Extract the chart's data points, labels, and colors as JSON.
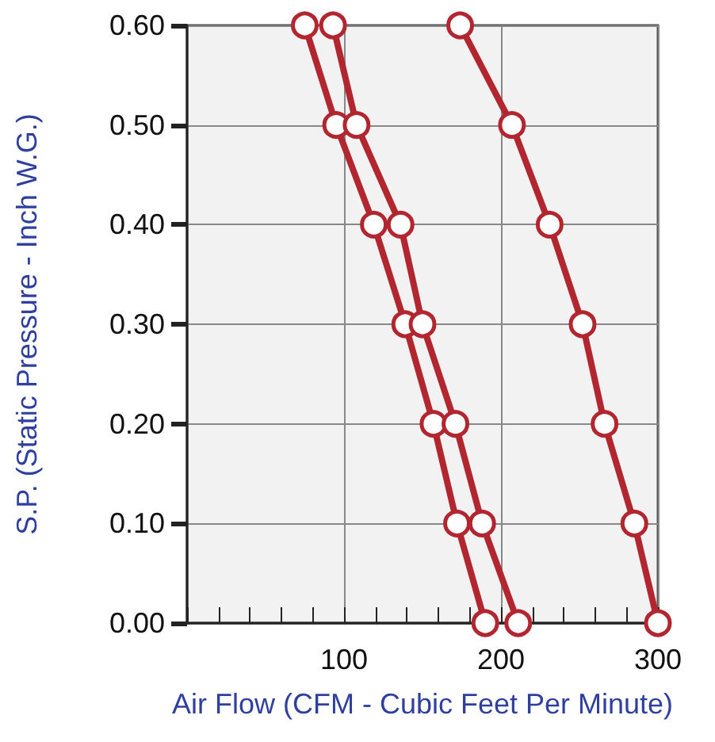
{
  "chart_data": {
    "type": "line",
    "xlabel": "Air Flow (CFM - Cubic Feet Per Minute)",
    "ylabel": "S.P. (Static Pressure - Inch W.G.)",
    "series": [
      {
        "color": "#b22630",
        "x": [
          75,
          95,
          119,
          139,
          157,
          172,
          190
        ],
        "values": [
          0.6,
          0.5,
          0.4,
          0.3,
          0.2,
          0.1,
          0.0
        ]
      },
      {
        "color": "#b22630",
        "x": [
          93,
          108,
          136,
          150,
          171,
          188,
          211
        ],
        "values": [
          0.6,
          0.5,
          0.4,
          0.3,
          0.2,
          0.1,
          0.0
        ]
      },
      {
        "color": "#b22630",
        "x": [
          174,
          207,
          231,
          252,
          266,
          285,
          300
        ],
        "values": [
          0.6,
          0.5,
          0.4,
          0.3,
          0.2,
          0.1,
          0.0
        ]
      }
    ],
    "xlim": [
      0,
      300
    ],
    "xticks": [
      {
        "value": 0,
        "label": null
      },
      {
        "value": 20,
        "label": null
      },
      {
        "value": 40,
        "label": null
      },
      {
        "value": 60,
        "label": null
      },
      {
        "value": 80,
        "label": null
      },
      100,
      {
        "value": 120,
        "label": null
      },
      {
        "value": 140,
        "label": null
      },
      {
        "value": 160,
        "label": null
      },
      {
        "value": 180,
        "label": null
      },
      200,
      {
        "value": 220,
        "label": null
      },
      {
        "value": 240,
        "label": null
      },
      {
        "value": 260,
        "label": null
      },
      {
        "value": 280,
        "label": null
      },
      300
    ],
    "ylim": [
      0,
      0.6
    ],
    "yticks": [
      {
        "value": 0,
        "label": "0.00"
      },
      {
        "value": 0.1,
        "label": "0.10"
      },
      {
        "value": 0.2,
        "label": "0.20"
      },
      {
        "value": 0.3,
        "label": "0.30"
      },
      {
        "value": 0.4,
        "label": "0.40"
      },
      {
        "value": 0.5,
        "label": "0.50"
      },
      {
        "value": 0.6,
        "label": "0.60"
      }
    ],
    "grid": true,
    "marker": "circle",
    "line_style": "solid"
  }
}
